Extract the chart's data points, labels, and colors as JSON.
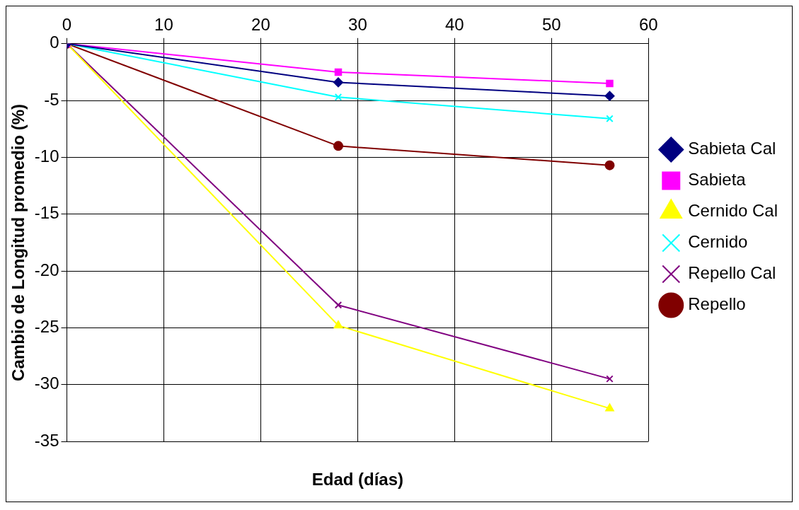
{
  "chart_data": {
    "type": "line",
    "xlabel": "Edad (días)",
    "ylabel": "Cambio de Longitud promedio (%)",
    "x": [
      0,
      28,
      56
    ],
    "series": [
      {
        "name": "Sabieta Cal",
        "color": "#000080",
        "marker": "diamond",
        "values": [
          0,
          -3.4,
          -4.6
        ]
      },
      {
        "name": "Sabieta",
        "color": "#ff00ff",
        "marker": "square",
        "values": [
          0,
          -2.5,
          -3.5
        ]
      },
      {
        "name": "Cernido Cal",
        "color": "#ffff00",
        "marker": "triangle",
        "values": [
          0,
          -24.8,
          -32.1
        ]
      },
      {
        "name": "Cernido",
        "color": "#00ffff",
        "marker": "cross",
        "values": [
          0,
          -4.7,
          -6.6
        ]
      },
      {
        "name": "Repello Cal",
        "color": "#800080",
        "marker": "cross",
        "values": [
          0,
          -23,
          -29.5
        ]
      },
      {
        "name": "Repello",
        "color": "#800000",
        "marker": "circle",
        "values": [
          0,
          -9,
          -10.7
        ]
      }
    ],
    "xlim": [
      0,
      60
    ],
    "xticks": [
      0,
      10,
      20,
      30,
      40,
      50,
      60
    ],
    "ylim": [
      -35,
      0
    ],
    "yticks": [
      -35,
      -30,
      -25,
      -20,
      -15,
      -10,
      -5,
      0
    ],
    "grid": true,
    "legend": "right",
    "line_style": "solid"
  }
}
